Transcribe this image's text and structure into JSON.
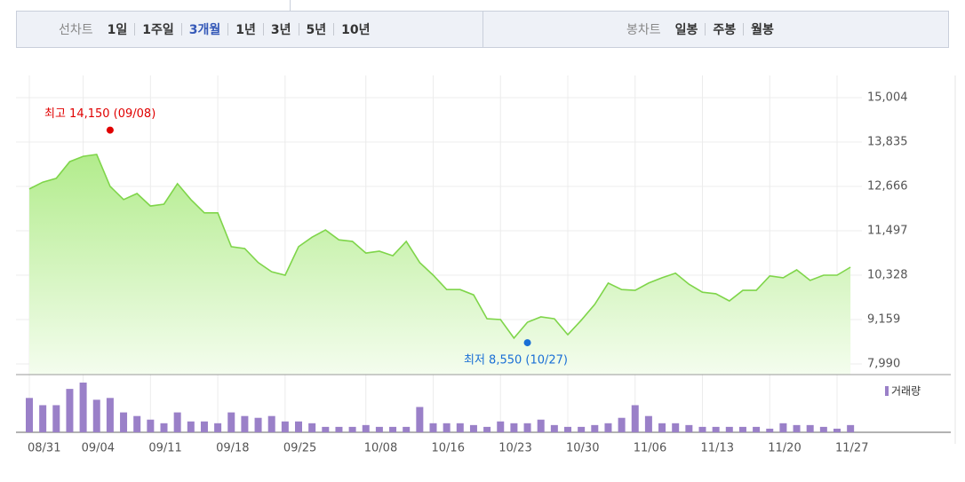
{
  "toolbar": {
    "line_label": "선차트",
    "periods": [
      "1일",
      "1주일",
      "3개월",
      "1년",
      "3년",
      "5년",
      "10년"
    ],
    "selected_period": "3개월",
    "candle_label": "봉차트",
    "candle_periods": [
      "일봉",
      "주봉",
      "월봉"
    ]
  },
  "chart_data": [
    {
      "type": "area",
      "color": "#7fd54a",
      "categories": [
        "08/31",
        null,
        null,
        null,
        "09/04",
        null,
        null,
        null,
        null,
        "09/11",
        null,
        null,
        null,
        null,
        "09/18",
        null,
        null,
        null,
        null,
        "09/25",
        null,
        null,
        null,
        null,
        null,
        "10/08",
        null,
        null,
        null,
        null,
        "10/16",
        null,
        null,
        null,
        null,
        "10/23",
        null,
        null,
        null,
        null,
        "10/30",
        null,
        null,
        null,
        null,
        "11/06",
        null,
        null,
        null,
        null,
        "11/13",
        null,
        null,
        null,
        null,
        "11/20",
        null,
        null,
        null,
        null,
        "11/27",
        null
      ],
      "values": [
        12600,
        12780,
        12880,
        13320,
        13460,
        13510,
        12670,
        12320,
        12480,
        12150,
        12200,
        12740,
        12320,
        11970,
        11970,
        11080,
        11030,
        10660,
        10420,
        10330,
        11080,
        11330,
        11520,
        11260,
        11220,
        10910,
        10960,
        10840,
        11220,
        10660,
        10330,
        9950,
        9950,
        9810,
        9180,
        9160,
        8670,
        9090,
        9230,
        9180,
        8760,
        9140,
        9560,
        10120,
        9950,
        9930,
        10120,
        10260,
        10380,
        10090,
        9880,
        9840,
        9650,
        9930,
        9930,
        10310,
        10260,
        10470,
        10190,
        10330,
        10330,
        10540
      ],
      "ylim": [
        7710,
        15590
      ],
      "yticks": [
        {
          "value": 15004,
          "label": "15,004"
        },
        {
          "value": 13835,
          "label": "13,835"
        },
        {
          "value": 12666,
          "label": "12,666"
        },
        {
          "value": 11497,
          "label": "11,497"
        },
        {
          "value": 10328,
          "label": "10,328"
        },
        {
          "value": 9159,
          "label": "9,159"
        },
        {
          "value": 7990,
          "label": "7,990"
        }
      ],
      "grid": true,
      "annotations": [
        {
          "text": "최고 14,150 (09/08)",
          "value": 14150,
          "color": "#e00000"
        },
        {
          "text": "최저 8,550 (10/27)",
          "value": 8550,
          "color": "#1a6fd6"
        }
      ]
    },
    {
      "type": "bar",
      "series": [
        {
          "name": "거래량",
          "color": "#9a80c8",
          "values": [
            38,
            30,
            30,
            48,
            55,
            36,
            38,
            22,
            18,
            14,
            10,
            22,
            12,
            12,
            10,
            22,
            18,
            16,
            18,
            12,
            12,
            10,
            6,
            6,
            6,
            8,
            6,
            6,
            6,
            28,
            10,
            10,
            10,
            8,
            6,
            12,
            10,
            10,
            14,
            8,
            6,
            6,
            8,
            10,
            16,
            30,
            18,
            10,
            10,
            8,
            6,
            6,
            6,
            6,
            6,
            4,
            10,
            8,
            8,
            6,
            4,
            8
          ]
        }
      ]
    }
  ]
}
